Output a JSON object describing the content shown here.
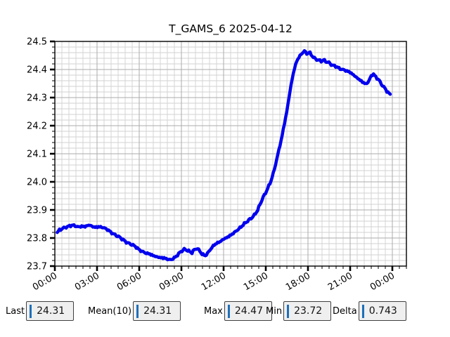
{
  "window": {
    "title": "T_GAMS_6 2025-04-12"
  },
  "chart_data": {
    "type": "line",
    "title": "T_GAMS_6 2025-04-12",
    "xlabel": "",
    "ylabel": "",
    "grid": true,
    "legend": "none",
    "xlim_hours": [
      0,
      25
    ],
    "ylim": [
      23.7,
      24.5
    ],
    "x_ticks_hours": [
      0,
      3,
      6,
      9,
      12,
      15,
      18,
      21,
      24
    ],
    "x_tick_labels": [
      "00:00",
      "03:00",
      "06:00",
      "09:00",
      "12:00",
      "15:00",
      "18:00",
      "21:00",
      "00:00"
    ],
    "x_minor_step_hours": 0.5,
    "y_major_step": 0.1,
    "y_minor_step": 0.02,
    "y_tick_labels": [
      "23.7",
      "23.8",
      "23.9",
      "24.0",
      "24.1",
      "24.2",
      "24.3",
      "24.4",
      "24.5"
    ],
    "series": [
      {
        "name": "T_GAMS_6",
        "color": "#0000ee",
        "points": [
          [
            0.17,
            23.82
          ],
          [
            0.3,
            23.827
          ],
          [
            0.5,
            23.833
          ],
          [
            0.75,
            23.838
          ],
          [
            1.0,
            23.842
          ],
          [
            1.25,
            23.846
          ],
          [
            1.5,
            23.842
          ],
          [
            1.7,
            23.839
          ],
          [
            1.9,
            23.842
          ],
          [
            2.1,
            23.84
          ],
          [
            2.3,
            23.844
          ],
          [
            2.5,
            23.846
          ],
          [
            2.7,
            23.84
          ],
          [
            2.9,
            23.838
          ],
          [
            3.1,
            23.84
          ],
          [
            3.3,
            23.839
          ],
          [
            3.5,
            23.836
          ],
          [
            3.75,
            23.83
          ],
          [
            4.0,
            23.82
          ],
          [
            4.25,
            23.812
          ],
          [
            4.5,
            23.806
          ],
          [
            4.75,
            23.798
          ],
          [
            5.0,
            23.788
          ],
          [
            5.25,
            23.781
          ],
          [
            5.5,
            23.776
          ],
          [
            5.75,
            23.769
          ],
          [
            6.0,
            23.758
          ],
          [
            6.25,
            23.751
          ],
          [
            6.5,
            23.746
          ],
          [
            6.75,
            23.743
          ],
          [
            7.0,
            23.737
          ],
          [
            7.25,
            23.733
          ],
          [
            7.5,
            23.73
          ],
          [
            7.75,
            23.729
          ],
          [
            8.0,
            23.725
          ],
          [
            8.2,
            23.722
          ],
          [
            8.4,
            23.726
          ],
          [
            8.6,
            23.733
          ],
          [
            8.8,
            23.744
          ],
          [
            9.0,
            23.753
          ],
          [
            9.2,
            23.76
          ],
          [
            9.4,
            23.757
          ],
          [
            9.6,
            23.751
          ],
          [
            9.75,
            23.748
          ],
          [
            9.9,
            23.757
          ],
          [
            10.1,
            23.764
          ],
          [
            10.3,
            23.754
          ],
          [
            10.5,
            23.741
          ],
          [
            10.7,
            23.737
          ],
          [
            10.9,
            23.748
          ],
          [
            11.1,
            23.762
          ],
          [
            11.3,
            23.774
          ],
          [
            11.5,
            23.781
          ],
          [
            11.75,
            23.787
          ],
          [
            12.0,
            23.796
          ],
          [
            12.25,
            23.802
          ],
          [
            12.5,
            23.81
          ],
          [
            12.75,
            23.819
          ],
          [
            13.0,
            23.829
          ],
          [
            13.25,
            23.84
          ],
          [
            13.5,
            23.852
          ],
          [
            13.75,
            23.862
          ],
          [
            14.0,
            23.872
          ],
          [
            14.2,
            23.882
          ],
          [
            14.43,
            23.9
          ],
          [
            14.6,
            23.921
          ],
          [
            14.8,
            23.944
          ],
          [
            15.0,
            23.962
          ],
          [
            15.35,
            24.0
          ],
          [
            15.6,
            24.042
          ],
          [
            15.87,
            24.1
          ],
          [
            16.1,
            24.15
          ],
          [
            16.3,
            24.2
          ],
          [
            16.5,
            24.252
          ],
          [
            16.65,
            24.3
          ],
          [
            16.85,
            24.36
          ],
          [
            17.02,
            24.4
          ],
          [
            17.2,
            24.43
          ],
          [
            17.4,
            24.447
          ],
          [
            17.6,
            24.459
          ],
          [
            17.75,
            24.466
          ],
          [
            17.95,
            24.455
          ],
          [
            18.1,
            24.462
          ],
          [
            18.25,
            24.452
          ],
          [
            18.4,
            24.442
          ],
          [
            18.6,
            24.436
          ],
          [
            18.8,
            24.432
          ],
          [
            19.0,
            24.43
          ],
          [
            19.1,
            24.434
          ],
          [
            19.3,
            24.428
          ],
          [
            19.5,
            24.424
          ],
          [
            19.7,
            24.416
          ],
          [
            20.0,
            24.411
          ],
          [
            20.3,
            24.402
          ],
          [
            20.6,
            24.398
          ],
          [
            20.85,
            24.393
          ],
          [
            21.0,
            24.39
          ],
          [
            21.3,
            24.378
          ],
          [
            21.6,
            24.366
          ],
          [
            21.9,
            24.355
          ],
          [
            22.1,
            24.348
          ],
          [
            22.3,
            24.356
          ],
          [
            22.5,
            24.378
          ],
          [
            22.65,
            24.384
          ],
          [
            22.85,
            24.372
          ],
          [
            23.05,
            24.362
          ],
          [
            23.25,
            24.346
          ],
          [
            23.45,
            24.334
          ],
          [
            23.65,
            24.321
          ],
          [
            23.85,
            24.31
          ]
        ]
      }
    ]
  },
  "stats": {
    "items": [
      {
        "label": "Last",
        "value": "24.31"
      },
      {
        "label": "Mean(10)",
        "value": "24.31"
      },
      {
        "label": "Max",
        "value": "24.47"
      },
      {
        "label": "Min",
        "value": "23.72"
      },
      {
        "label": "Delta",
        "value": "0.743"
      }
    ]
  },
  "colors": {
    "line": "#0000ee",
    "axis": "#000000",
    "grid_major": "#ababab",
    "grid_minor": "#d2d2d2",
    "plot_bg": "#ffffff",
    "figure_bg": "#ffffff",
    "entry_bg": "#efefef",
    "entry_border": "#404040",
    "caret": "#1e6fb8",
    "text": "#000000"
  }
}
